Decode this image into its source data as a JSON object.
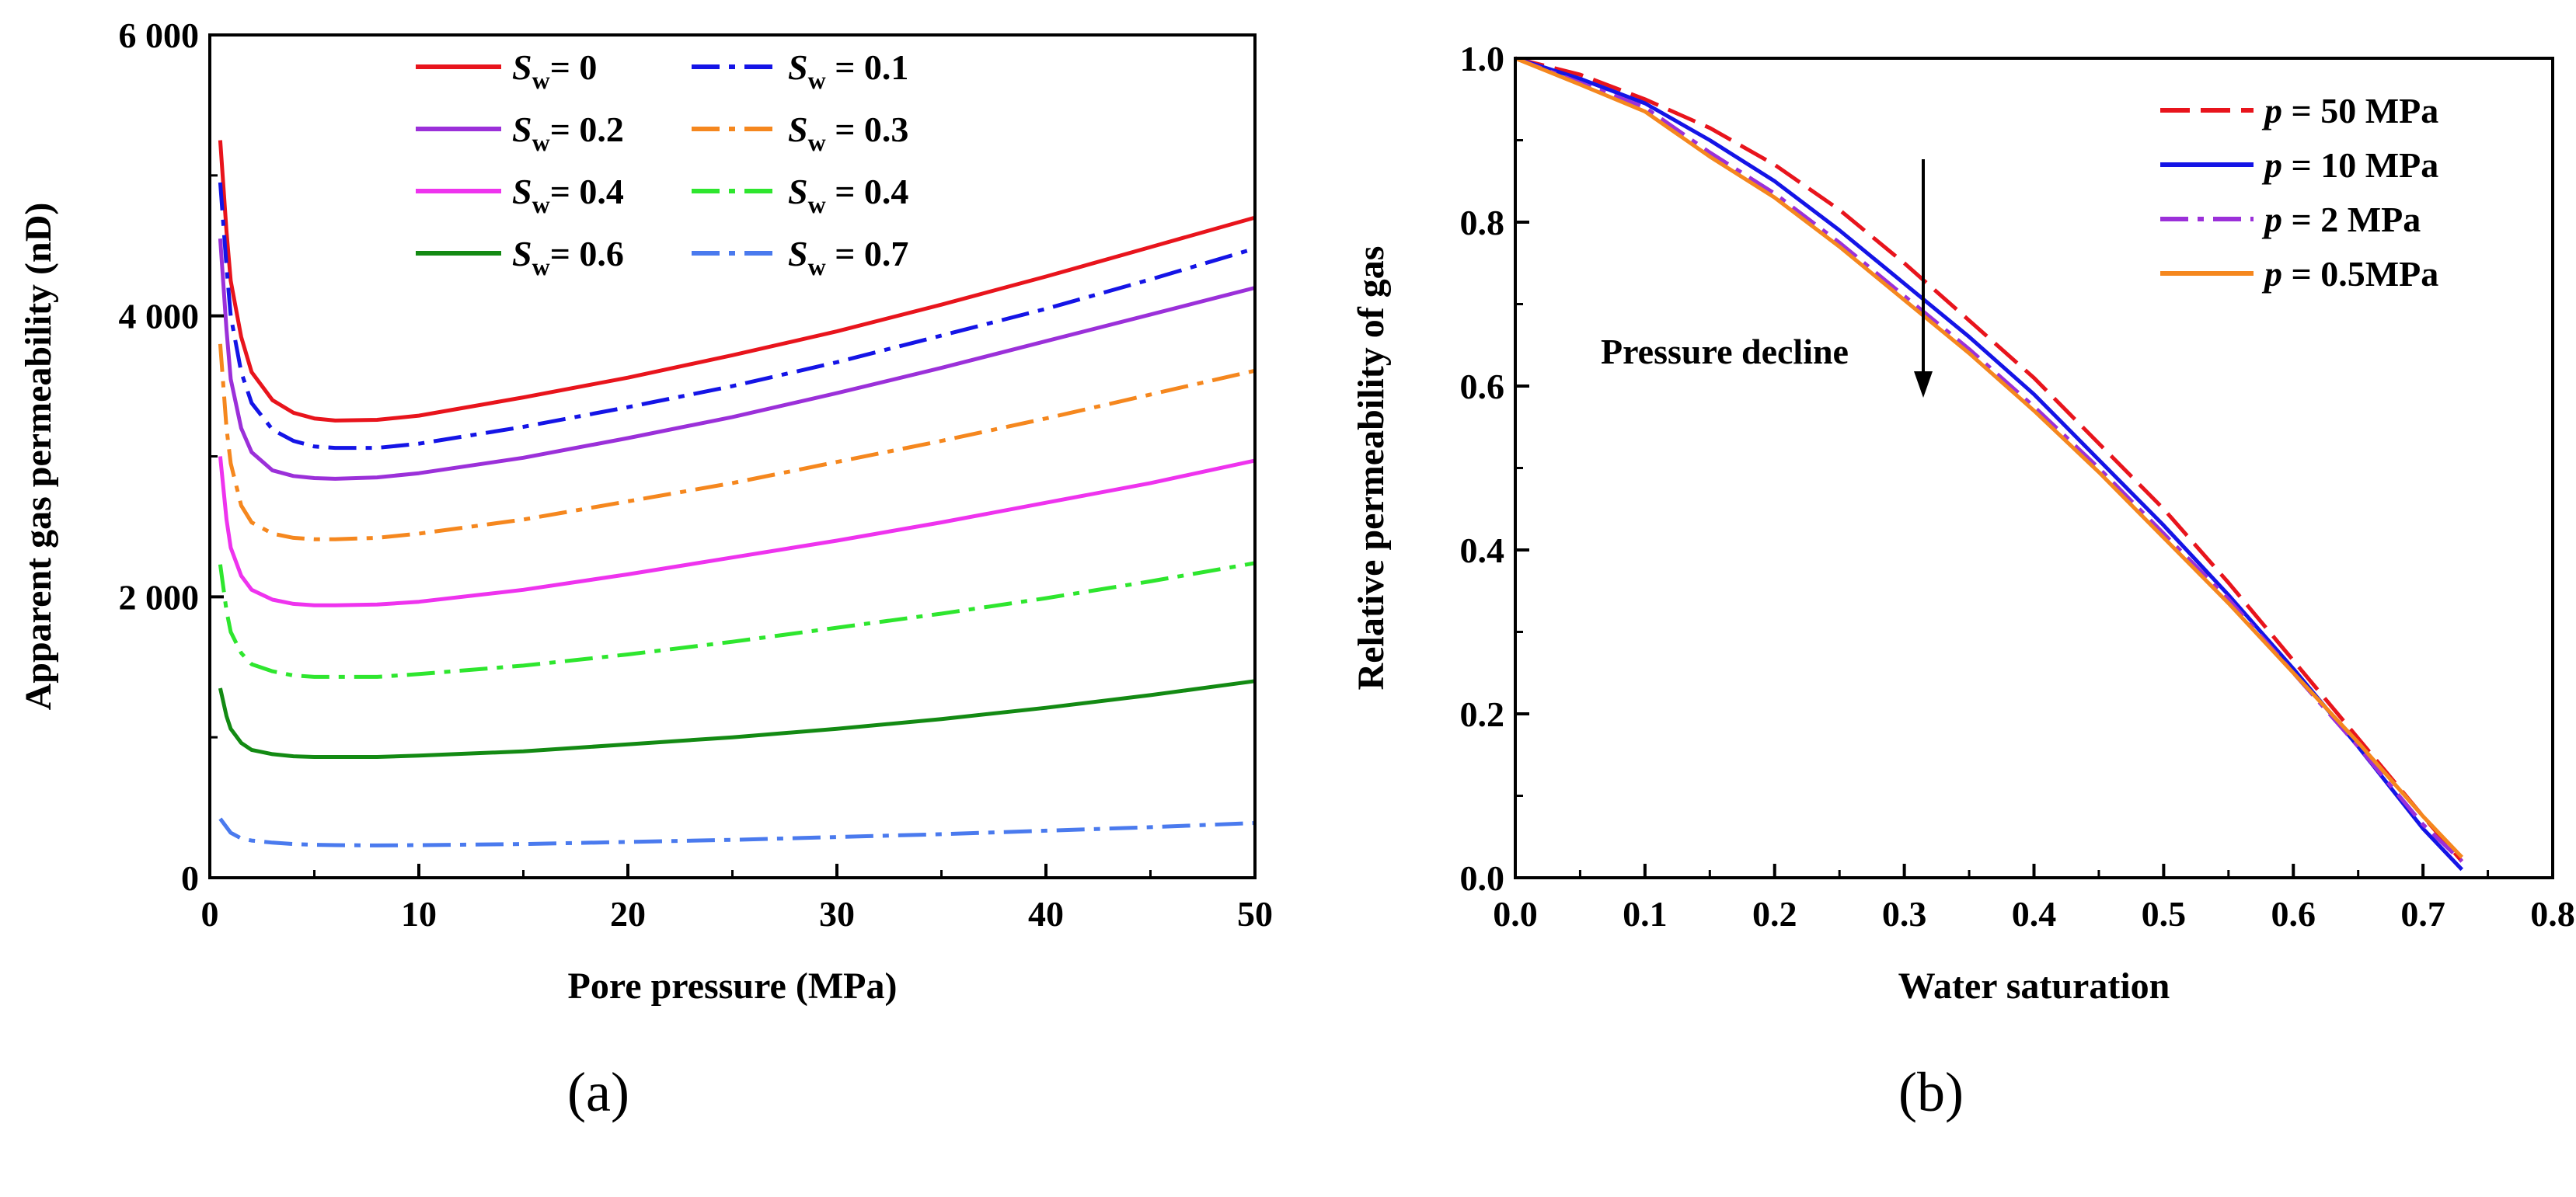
{
  "panel_labels": [
    "(a)",
    "(b)"
  ],
  "colors": {
    "red": "#e8141c",
    "blue": "#1414e6",
    "purple": "#9b30d9",
    "orange": "#f5871e",
    "magenta": "#ee33ee",
    "green": "#2ee62e",
    "dark_green": "#138a13",
    "light_blue": "#4a7aee"
  },
  "chart_data": [
    {
      "type": "line",
      "panel": "(a)",
      "xlabel": "Pore pressure (MPa)",
      "ylabel": "Apparent gas permeability (nD)",
      "xlim": [
        0,
        50
      ],
      "ylim": [
        0,
        6000
      ],
      "xticks": [
        0,
        10,
        20,
        30,
        40,
        50
      ],
      "xtick_labels": [
        "0",
        "10",
        "20",
        "30",
        "40",
        "50"
      ],
      "yticks": [
        0,
        2000,
        4000,
        6000
      ],
      "ytick_labels": [
        "0",
        "2 000",
        "4 000",
        "6 000"
      ],
      "legend_location": "top",
      "x": [
        0.5,
        0.8,
        1,
        1.5,
        2,
        3,
        4,
        5,
        6,
        8,
        10,
        15,
        20,
        25,
        30,
        35,
        40,
        45,
        50
      ],
      "series": [
        {
          "name_sym": "S",
          "name_sub": "w",
          "name_val": "=  0",
          "color": "red",
          "dash": "solid",
          "values": [
            5250,
            4600,
            4250,
            3850,
            3600,
            3400,
            3310,
            3270,
            3255,
            3260,
            3290,
            3420,
            3560,
            3720,
            3890,
            4080,
            4280,
            4490,
            4700
          ]
        },
        {
          "name_sym": "S",
          "name_sub": "w",
          "name_val": " = 0.1",
          "color": "blue",
          "dash": "dashdot",
          "values": [
            4950,
            4350,
            4000,
            3600,
            3380,
            3190,
            3110,
            3070,
            3060,
            3060,
            3090,
            3210,
            3350,
            3500,
            3670,
            3860,
            4050,
            4260,
            4480
          ]
        },
        {
          "name_sym": "S",
          "name_sub": "w",
          "name_val": "= 0.2",
          "color": "purple",
          "dash": "solid",
          "values": [
            4550,
            3900,
            3550,
            3200,
            3030,
            2900,
            2860,
            2845,
            2840,
            2850,
            2880,
            2990,
            3130,
            3280,
            3450,
            3630,
            3820,
            4010,
            4200
          ]
        },
        {
          "name_sym": "S",
          "name_sub": "w",
          "name_val": " = 0.3",
          "color": "orange",
          "dash": "dashdot",
          "values": [
            3800,
            3200,
            2950,
            2650,
            2530,
            2450,
            2420,
            2410,
            2410,
            2420,
            2450,
            2550,
            2680,
            2810,
            2960,
            3110,
            3270,
            3440,
            3610
          ]
        },
        {
          "name_sym": "S",
          "name_sub": "w",
          "name_val": "= 0.4",
          "color": "magenta",
          "dash": "solid",
          "values": [
            3000,
            2550,
            2350,
            2150,
            2050,
            1980,
            1950,
            1940,
            1940,
            1945,
            1965,
            2050,
            2160,
            2280,
            2400,
            2530,
            2670,
            2810,
            2970
          ]
        },
        {
          "name_sym": "S",
          "name_sub": "w",
          "name_val": " = 0.4",
          "color": "green",
          "dash": "dashdot",
          "values": [
            2230,
            1900,
            1750,
            1600,
            1520,
            1470,
            1440,
            1430,
            1430,
            1430,
            1450,
            1510,
            1590,
            1680,
            1780,
            1880,
            1990,
            2110,
            2240
          ]
        },
        {
          "name_sym": "S",
          "name_sub": "w",
          "name_val": "= 0.6",
          "color": "dark_green",
          "dash": "solid",
          "values": [
            1350,
            1150,
            1060,
            960,
            910,
            880,
            865,
            860,
            860,
            860,
            870,
            900,
            950,
            1000,
            1060,
            1130,
            1210,
            1300,
            1400
          ]
        },
        {
          "name_sym": "S",
          "name_sub": "w",
          "name_val": " = 0.7",
          "color": "light_blue",
          "dash": "dashdot",
          "values": [
            420,
            360,
            320,
            280,
            265,
            250,
            240,
            235,
            232,
            230,
            232,
            240,
            255,
            270,
            290,
            310,
            335,
            360,
            390
          ]
        }
      ]
    },
    {
      "type": "line",
      "panel": "(b)",
      "xlabel": "Water saturation",
      "ylabel": "Relative permeability of gas",
      "xlim": [
        0.0,
        0.8
      ],
      "ylim": [
        0.0,
        1.0
      ],
      "xticks": [
        0.0,
        0.1,
        0.2,
        0.3,
        0.4,
        0.5,
        0.6,
        0.7,
        0.8
      ],
      "xtick_labels": [
        "0.0",
        "0.1",
        "0.2",
        "0.3",
        "0.4",
        "0.5",
        "0.6",
        "0.7",
        "0.8"
      ],
      "yticks": [
        0.0,
        0.2,
        0.4,
        0.6,
        0.8,
        1.0
      ],
      "ytick_labels": [
        "0.0",
        "0.2",
        "0.4",
        "0.6",
        "0.8",
        "1.0"
      ],
      "legend_location": "top-right",
      "annotation": "Pressure decline",
      "x": [
        0.0,
        0.05,
        0.1,
        0.15,
        0.2,
        0.25,
        0.3,
        0.35,
        0.4,
        0.45,
        0.5,
        0.55,
        0.6,
        0.65,
        0.7,
        0.73
      ],
      "series": [
        {
          "name_sym": "p",
          "name_val": " = 50 MPa",
          "color": "red",
          "dash": "dash",
          "values": [
            1.0,
            0.98,
            0.95,
            0.915,
            0.87,
            0.815,
            0.75,
            0.68,
            0.61,
            0.53,
            0.45,
            0.36,
            0.265,
            0.17,
            0.075,
            0.02
          ]
        },
        {
          "name_sym": "p",
          "name_val": " = 10 MPa",
          "color": "blue",
          "dash": "solid",
          "values": [
            1.0,
            0.975,
            0.945,
            0.9,
            0.85,
            0.79,
            0.725,
            0.66,
            0.59,
            0.51,
            0.43,
            0.345,
            0.255,
            0.16,
            0.06,
            0.01
          ]
        },
        {
          "name_sym": "p",
          "name_val": " =  2  MPa",
          "color": "purple",
          "dash": "dashdot",
          "values": [
            1.0,
            0.97,
            0.94,
            0.885,
            0.835,
            0.775,
            0.71,
            0.645,
            0.575,
            0.5,
            0.42,
            0.34,
            0.25,
            0.16,
            0.065,
            0.02
          ]
        },
        {
          "name_sym": "p",
          "name_val": " = 0.5MPa",
          "color": "orange",
          "dash": "solid",
          "values": [
            1.0,
            0.968,
            0.935,
            0.88,
            0.83,
            0.77,
            0.705,
            0.64,
            0.57,
            0.495,
            0.415,
            0.335,
            0.25,
            0.165,
            0.075,
            0.025
          ]
        }
      ]
    }
  ]
}
